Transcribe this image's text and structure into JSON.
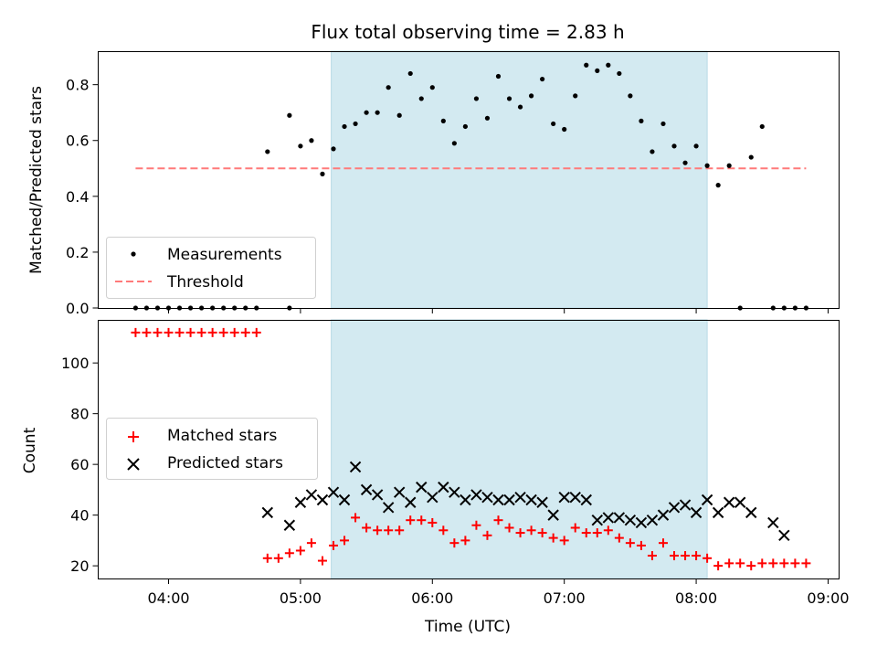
{
  "title": "Flux total observing time = 2.83 h",
  "colors": {
    "band": "#d3eaf1",
    "band_edge": "#b9dbe6",
    "measurement": "#000000",
    "threshold": "#ff7a7a",
    "matched": "#ff0000",
    "predicted": "#000000"
  },
  "chart_data": [
    {
      "type": "scatter",
      "ylabel": "Matched/Predicted stars",
      "xlim": [
        "03:28",
        "09:05"
      ],
      "ylim": [
        0,
        0.92
      ],
      "yticks": [
        0,
        0.2,
        0.4,
        0.6,
        0.8
      ],
      "ytick_labels": [
        "0.0",
        "0.2",
        "0.4",
        "0.6",
        "0.8"
      ],
      "shaded_interval": [
        "05:14",
        "08:05"
      ],
      "legend_position": "lower-left",
      "series": [
        {
          "name": "Measurements",
          "marker": "dot",
          "points": [
            [
              "03:45",
              0
            ],
            [
              "03:50",
              0
            ],
            [
              "03:55",
              0
            ],
            [
              "04:00",
              0
            ],
            [
              "04:05",
              0
            ],
            [
              "04:10",
              0
            ],
            [
              "04:15",
              0
            ],
            [
              "04:20",
              0
            ],
            [
              "04:25",
              0
            ],
            [
              "04:30",
              0
            ],
            [
              "04:35",
              0
            ],
            [
              "04:40",
              0
            ],
            [
              "04:45",
              0.56
            ],
            [
              "04:55",
              0
            ],
            [
              "04:55",
              0.69
            ],
            [
              "05:00",
              0.58
            ],
            [
              "05:05",
              0.6
            ],
            [
              "05:10",
              0.48
            ],
            [
              "05:15",
              0.57
            ],
            [
              "05:20",
              0.65
            ],
            [
              "05:25",
              0.66
            ],
            [
              "05:30",
              0.7
            ],
            [
              "05:35",
              0.7
            ],
            [
              "05:40",
              0.79
            ],
            [
              "05:45",
              0.69
            ],
            [
              "05:50",
              0.84
            ],
            [
              "05:55",
              0.75
            ],
            [
              "06:00",
              0.79
            ],
            [
              "06:05",
              0.67
            ],
            [
              "06:10",
              0.59
            ],
            [
              "06:15",
              0.65
            ],
            [
              "06:20",
              0.75
            ],
            [
              "06:25",
              0.68
            ],
            [
              "06:30",
              0.83
            ],
            [
              "06:35",
              0.75
            ],
            [
              "06:40",
              0.72
            ],
            [
              "06:45",
              0.76
            ],
            [
              "06:50",
              0.82
            ],
            [
              "06:55",
              0.66
            ],
            [
              "07:00",
              0.64
            ],
            [
              "07:05",
              0.76
            ],
            [
              "07:10",
              0.87
            ],
            [
              "07:15",
              0.85
            ],
            [
              "07:20",
              0.87
            ],
            [
              "07:25",
              0.84
            ],
            [
              "07:30",
              0.76
            ],
            [
              "07:35",
              0.67
            ],
            [
              "07:40",
              0.56
            ],
            [
              "07:45",
              0.66
            ],
            [
              "07:50",
              0.58
            ],
            [
              "07:55",
              0.52
            ],
            [
              "08:00",
              0.58
            ],
            [
              "08:05",
              0.51
            ],
            [
              "08:10",
              0.44
            ],
            [
              "08:15",
              0.51
            ],
            [
              "08:20",
              0
            ],
            [
              "08:25",
              0.54
            ],
            [
              "08:30",
              0.65
            ],
            [
              "08:35",
              0
            ],
            [
              "08:40",
              0
            ],
            [
              "08:45",
              0
            ],
            [
              "08:50",
              0
            ]
          ]
        },
        {
          "name": "Threshold",
          "style": "dashed",
          "points": [
            [
              "03:45",
              0.5
            ],
            [
              "08:50",
              0.5
            ]
          ]
        }
      ]
    },
    {
      "type": "scatter",
      "xlabel": "Time (UTC)",
      "ylabel": "Count",
      "xlim": [
        "03:28",
        "09:05"
      ],
      "ylim": [
        15,
        117
      ],
      "yticks": [
        20,
        40,
        60,
        80,
        100
      ],
      "ytick_labels": [
        "20",
        "40",
        "60",
        "80",
        "100"
      ],
      "xticks": [
        "04:00",
        "05:00",
        "06:00",
        "07:00",
        "08:00",
        "09:00"
      ],
      "shaded_interval": [
        "05:14",
        "08:05"
      ],
      "legend_position": "center-left",
      "series": [
        {
          "name": "Matched stars",
          "marker": "plus",
          "points": [
            [
              "03:45",
              112
            ],
            [
              "03:50",
              112
            ],
            [
              "03:55",
              112
            ],
            [
              "04:00",
              112
            ],
            [
              "04:05",
              112
            ],
            [
              "04:10",
              112
            ],
            [
              "04:15",
              112
            ],
            [
              "04:20",
              112
            ],
            [
              "04:25",
              112
            ],
            [
              "04:30",
              112
            ],
            [
              "04:35",
              112
            ],
            [
              "04:40",
              112
            ],
            [
              "04:45",
              23
            ],
            [
              "04:50",
              23
            ],
            [
              "04:55",
              25
            ],
            [
              "05:00",
              26
            ],
            [
              "05:05",
              29
            ],
            [
              "05:10",
              22
            ],
            [
              "05:15",
              28
            ],
            [
              "05:20",
              30
            ],
            [
              "05:25",
              39
            ],
            [
              "05:30",
              35
            ],
            [
              "05:35",
              34
            ],
            [
              "05:40",
              34
            ],
            [
              "05:45",
              34
            ],
            [
              "05:50",
              38
            ],
            [
              "05:55",
              38
            ],
            [
              "06:00",
              37
            ],
            [
              "06:05",
              34
            ],
            [
              "06:10",
              29
            ],
            [
              "06:15",
              30
            ],
            [
              "06:20",
              36
            ],
            [
              "06:25",
              32
            ],
            [
              "06:30",
              38
            ],
            [
              "06:35",
              35
            ],
            [
              "06:40",
              33
            ],
            [
              "06:45",
              34
            ],
            [
              "06:50",
              33
            ],
            [
              "06:55",
              31
            ],
            [
              "07:00",
              30
            ],
            [
              "07:05",
              35
            ],
            [
              "07:10",
              33
            ],
            [
              "07:15",
              33
            ],
            [
              "07:20",
              34
            ],
            [
              "07:25",
              31
            ],
            [
              "07:30",
              29
            ],
            [
              "07:35",
              28
            ],
            [
              "07:40",
              24
            ],
            [
              "07:45",
              29
            ],
            [
              "07:50",
              24
            ],
            [
              "07:55",
              24
            ],
            [
              "08:00",
              24
            ],
            [
              "08:05",
              23
            ],
            [
              "08:10",
              20
            ],
            [
              "08:15",
              21
            ],
            [
              "08:20",
              21
            ],
            [
              "08:25",
              20
            ],
            [
              "08:30",
              21
            ],
            [
              "08:35",
              21
            ],
            [
              "08:40",
              21
            ],
            [
              "08:45",
              21
            ],
            [
              "08:50",
              21
            ]
          ]
        },
        {
          "name": "Predicted stars",
          "marker": "x",
          "points": [
            [
              "04:45",
              41
            ],
            [
              "04:55",
              36
            ],
            [
              "05:00",
              45
            ],
            [
              "05:05",
              48
            ],
            [
              "05:10",
              46
            ],
            [
              "05:15",
              49
            ],
            [
              "05:20",
              46
            ],
            [
              "05:25",
              59
            ],
            [
              "05:30",
              50
            ],
            [
              "05:35",
              48
            ],
            [
              "05:40",
              43
            ],
            [
              "05:45",
              49
            ],
            [
              "05:50",
              45
            ],
            [
              "05:55",
              51
            ],
            [
              "06:00",
              47
            ],
            [
              "06:05",
              51
            ],
            [
              "06:10",
              49
            ],
            [
              "06:15",
              46
            ],
            [
              "06:20",
              48
            ],
            [
              "06:25",
              47
            ],
            [
              "06:30",
              46
            ],
            [
              "06:35",
              46
            ],
            [
              "06:40",
              47
            ],
            [
              "06:45",
              46
            ],
            [
              "06:50",
              45
            ],
            [
              "06:55",
              40
            ],
            [
              "07:00",
              47
            ],
            [
              "07:05",
              47
            ],
            [
              "07:10",
              46
            ],
            [
              "07:15",
              38
            ],
            [
              "07:20",
              39
            ],
            [
              "07:25",
              39
            ],
            [
              "07:30",
              38
            ],
            [
              "07:35",
              37
            ],
            [
              "07:40",
              38
            ],
            [
              "07:45",
              40
            ],
            [
              "07:50",
              43
            ],
            [
              "07:55",
              44
            ],
            [
              "08:00",
              41
            ],
            [
              "08:05",
              46
            ],
            [
              "08:10",
              41
            ],
            [
              "08:15",
              45
            ],
            [
              "08:20",
              45
            ],
            [
              "08:25",
              41
            ],
            [
              "08:35",
              37
            ],
            [
              "08:40",
              32
            ]
          ]
        }
      ]
    }
  ]
}
